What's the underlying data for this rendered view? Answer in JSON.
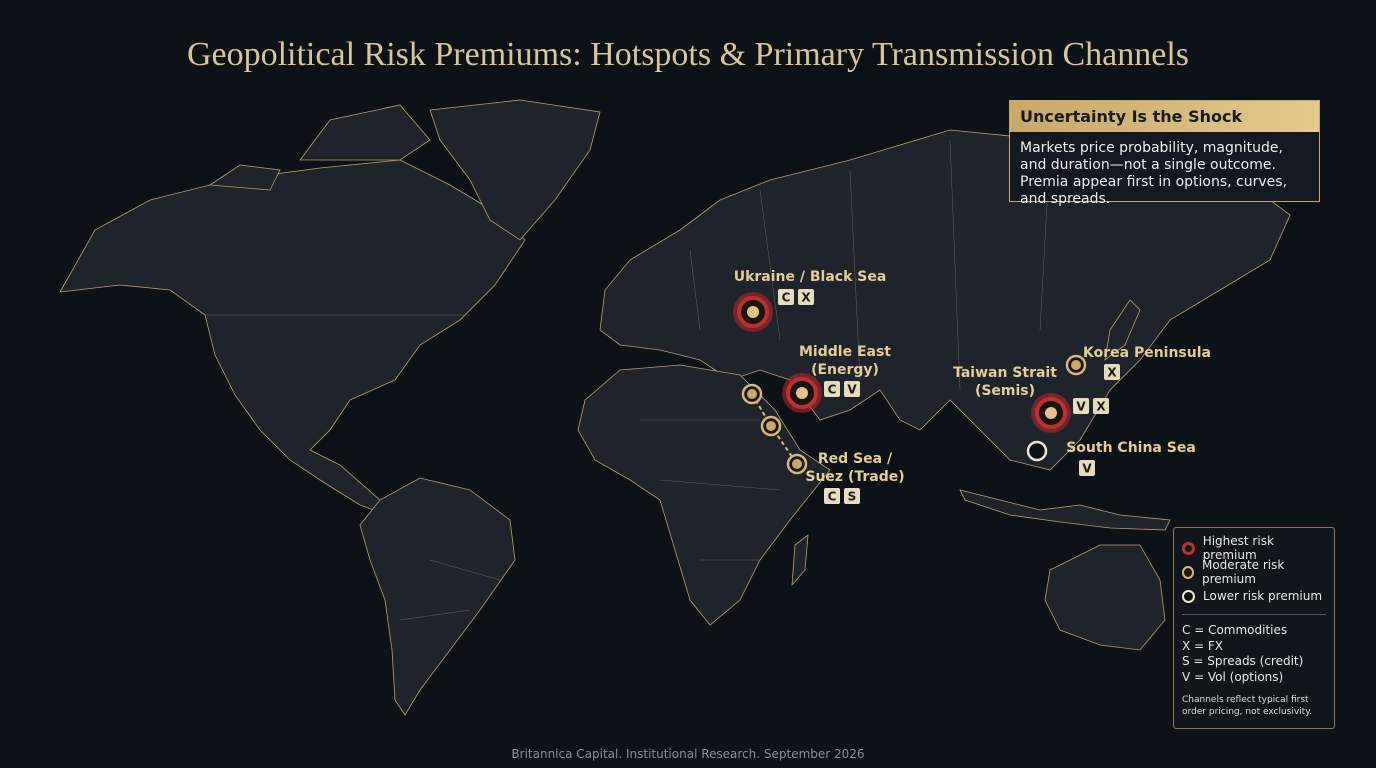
{
  "title": "Geopolitical Risk Premiums: Hotspots & Primary Transmission Channels",
  "callout": {
    "title": "Uncertainty Is the Shock",
    "body": "Markets price probability, magnitude, and duration—not a single outcome. Premia appear first in options, curves, and spreads."
  },
  "hotspots": [
    {
      "label": [
        "Ukraine / Black Sea"
      ],
      "channels": [
        "C",
        "X"
      ],
      "level": 0
    },
    {
      "label": [
        "Middle East",
        "(Energy)"
      ],
      "channels": [
        "C",
        "V"
      ],
      "level": 0
    },
    {
      "label": [
        "Red Sea /",
        "Suez (Trade)"
      ],
      "channels": [
        "C",
        "S"
      ],
      "level": 1
    },
    {
      "label": [
        "Taiwan Strait",
        "(Semis)"
      ],
      "channels": [
        "V",
        "X"
      ],
      "level": 0
    },
    {
      "label": [
        "Korea Peninsula"
      ],
      "channels": [
        "X"
      ],
      "level": 1
    },
    {
      "label": [
        "South China Sea"
      ],
      "channels": [
        "V"
      ],
      "level": 2
    }
  ],
  "legend": {
    "levels": [
      "Highest risk premium",
      "Moderate risk premium",
      "Lower risk premium"
    ],
    "channels": [
      "C = Commodities",
      "X = FX",
      "S = Spreads (credit)",
      "V = Vol (options)"
    ],
    "note": "Channels reflect typical first order pricing, not exclusivity."
  },
  "footer": "Britannica Capital. Institutional Research. September 2026"
}
